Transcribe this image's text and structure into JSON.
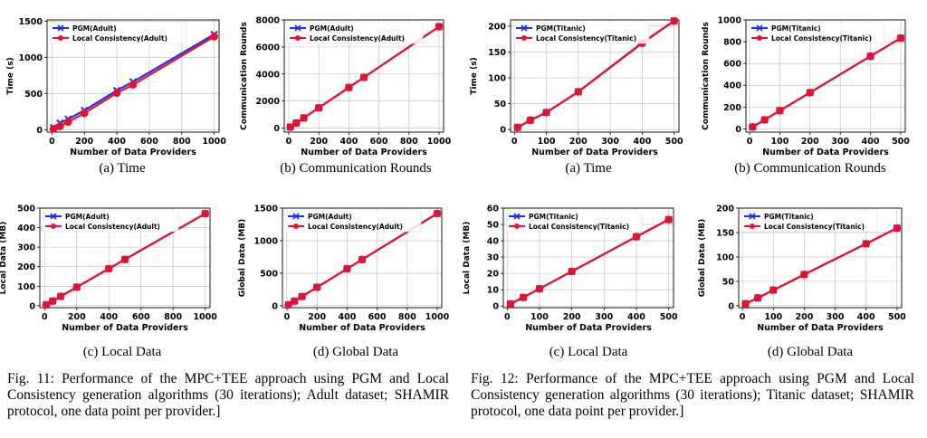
{
  "colors": {
    "pgm": "#1f2fe6",
    "lc": "#e8112d",
    "marker_edge": "#e8112d",
    "grid": "#bbbbbb"
  },
  "chart_data": [
    {
      "type": "line",
      "xlabel": "Number of Data Providers",
      "ylabel": "Time (s)",
      "xlim": [
        -30,
        1030
      ],
      "ylim": [
        -30,
        1520
      ],
      "xticks": [
        0,
        200,
        400,
        600,
        800,
        1000
      ],
      "yticks": [
        0,
        500,
        1000,
        1500
      ],
      "legend": "top-left",
      "grid": true,
      "x": [
        10,
        50,
        100,
        200,
        400,
        500,
        1000
      ],
      "series": [
        {
          "name": "PGM(Adult)",
          "values": [
            30,
            95,
            150,
            270,
            545,
            665,
            1320
          ]
        },
        {
          "name": "Local Consistency(Adult)",
          "values": [
            15,
            50,
            110,
            230,
            510,
            625,
            1290
          ]
        }
      ]
    },
    {
      "type": "line",
      "xlabel": "Number of Data Providers",
      "ylabel": "Communication Rounds",
      "xlim": [
        -30,
        1030
      ],
      "ylim": [
        -300,
        8000
      ],
      "xticks": [
        0,
        200,
        400,
        600,
        800,
        1000
      ],
      "yticks": [
        0,
        2000,
        4000,
        6000,
        8000
      ],
      "legend": "top-left",
      "grid": true,
      "x": [
        10,
        50,
        100,
        200,
        400,
        500,
        1000
      ],
      "series": [
        {
          "name": "PGM(Adult)",
          "values": [
            75,
            375,
            750,
            1500,
            3000,
            3750,
            7500
          ]
        },
        {
          "name": "Local Consistency(Adult)",
          "values": [
            75,
            375,
            750,
            1500,
            3000,
            3750,
            7500
          ]
        }
      ]
    },
    {
      "type": "line",
      "xlabel": "Number of Data Providers",
      "ylabel": "Time (s)",
      "xlim": [
        -12,
        515
      ],
      "ylim": [
        -5,
        212
      ],
      "xticks": [
        0,
        100,
        200,
        300,
        400,
        500
      ],
      "yticks": [
        0,
        50,
        100,
        150,
        200
      ],
      "legend": "top-left",
      "grid": true,
      "x": [
        10,
        50,
        100,
        200,
        400,
        500
      ],
      "series": [
        {
          "name": "PGM(Titanic)",
          "values": [
            4,
            18,
            33,
            73,
            168,
            210
          ]
        },
        {
          "name": "Local Consistency(Titanic)",
          "values": [
            4,
            18,
            33,
            73,
            167,
            210
          ]
        }
      ]
    },
    {
      "type": "line",
      "xlabel": "Number of Data Providers",
      "ylabel": "Communication Rounds",
      "xlim": [
        -12,
        515
      ],
      "ylim": [
        -30,
        1000
      ],
      "xticks": [
        0,
        100,
        200,
        300,
        400,
        500
      ],
      "yticks": [
        0,
        200,
        400,
        600,
        800,
        1000
      ],
      "legend": "top-left",
      "grid": true,
      "x": [
        10,
        50,
        100,
        200,
        400,
        500
      ],
      "series": [
        {
          "name": "PGM(Titanic)",
          "values": [
            17,
            83,
            167,
            333,
            667,
            833
          ]
        },
        {
          "name": "Local Consistency(Titanic)",
          "values": [
            17,
            83,
            167,
            333,
            667,
            833
          ]
        }
      ]
    },
    {
      "type": "line",
      "xlabel": "Number of Data Providers",
      "ylabel": "Local Data (MB)",
      "xlim": [
        -30,
        1030
      ],
      "ylim": [
        -10,
        500
      ],
      "xticks": [
        0,
        200,
        400,
        600,
        800,
        1000
      ],
      "yticks": [
        0,
        100,
        200,
        300,
        400,
        500
      ],
      "legend": "top-left",
      "grid": true,
      "x": [
        10,
        50,
        100,
        200,
        400,
        500,
        1000
      ],
      "series": [
        {
          "name": "PGM(Adult)",
          "values": [
            5,
            24,
            48,
            95,
            190,
            237,
            472
          ]
        },
        {
          "name": "Local Consistency(Adult)",
          "values": [
            5,
            24,
            48,
            95,
            190,
            237,
            472
          ]
        }
      ]
    },
    {
      "type": "line",
      "xlabel": "Number of Data Providers",
      "ylabel": "Global Data (MB)",
      "xlim": [
        -30,
        1030
      ],
      "ylim": [
        -30,
        1500
      ],
      "xticks": [
        0,
        200,
        400,
        600,
        800,
        1000
      ],
      "yticks": [
        0,
        500,
        1000,
        1500
      ],
      "legend": "top-left",
      "grid": true,
      "x": [
        10,
        50,
        100,
        200,
        400,
        500,
        1000
      ],
      "series": [
        {
          "name": "PGM(Adult)",
          "values": [
            14,
            71,
            142,
            284,
            568,
            710,
            1418
          ]
        },
        {
          "name": "Local Consistency(Adult)",
          "values": [
            14,
            71,
            142,
            284,
            568,
            710,
            1418
          ]
        }
      ]
    },
    {
      "type": "line",
      "xlabel": "Number of Data Providers",
      "ylabel": "Local Data (MB)",
      "xlim": [
        -12,
        515
      ],
      "ylim": [
        -1,
        60
      ],
      "xticks": [
        0,
        100,
        200,
        300,
        400,
        500
      ],
      "yticks": [
        0,
        10,
        20,
        30,
        40,
        50,
        60
      ],
      "legend": "top-left",
      "grid": true,
      "x": [
        10,
        50,
        100,
        200,
        400,
        500
      ],
      "series": [
        {
          "name": "PGM(Titanic)",
          "values": [
            1.3,
            5.3,
            10.6,
            21.2,
            42.5,
            53
          ]
        },
        {
          "name": "Local Consistency(Titanic)",
          "values": [
            1.3,
            5.3,
            10.6,
            21.2,
            42.5,
            53
          ]
        }
      ]
    },
    {
      "type": "line",
      "xlabel": "Number of Data Providers",
      "ylabel": "Global Data (MB)",
      "xlim": [
        -12,
        515
      ],
      "ylim": [
        -4,
        200
      ],
      "xticks": [
        0,
        100,
        200,
        300,
        400,
        500
      ],
      "yticks": [
        0,
        50,
        100,
        150,
        200
      ],
      "legend": "top-left",
      "grid": true,
      "x": [
        10,
        50,
        100,
        200,
        400,
        500
      ],
      "series": [
        {
          "name": "PGM(Titanic)",
          "values": [
            4,
            16,
            32,
            64,
            127,
            159
          ]
        },
        {
          "name": "Local Consistency(Titanic)",
          "values": [
            4,
            16,
            32,
            64,
            127,
            159
          ]
        }
      ]
    }
  ],
  "subcaptions": [
    "(a) Time",
    "(b) Communication Rounds",
    "(a) Time",
    "(b) Communication Rounds",
    "(c) Local Data",
    "(d) Global Data",
    "(c) Local Data",
    "(d) Global Data"
  ],
  "captions": {
    "fig11": "Fig. 11: Performance of the MPC+TEE approach using PGM and Local Consistency generation algorithms (30 iterations); Adult dataset; SHAMIR protocol, one data point per provider.]",
    "fig12": "Fig. 12: Performance of the MPC+TEE approach using PGM and Local Consistency generation algorithms (30 iterations); Titanic dataset; SHAMIR protocol, one data point per provider.]"
  }
}
